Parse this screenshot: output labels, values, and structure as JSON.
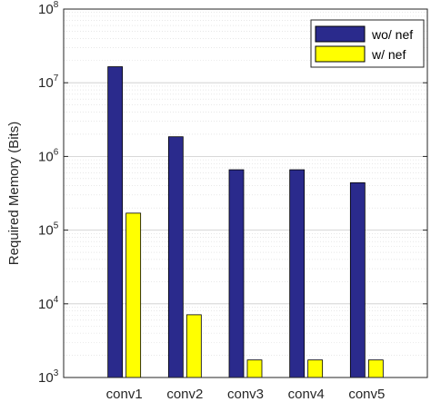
{
  "chart_data": {
    "type": "bar",
    "title": "",
    "xlabel": "",
    "ylabel": "Required Memory (Bits)",
    "yscale": "log",
    "ylim": [
      1000,
      100000000
    ],
    "y_tick_base": "10",
    "y_tick_exponents": [
      "3",
      "4",
      "5",
      "6",
      "7",
      "8"
    ],
    "grid": "on (major and minor, y only)",
    "legend_position": "top-right",
    "categories": [
      "conv1",
      "conv2",
      "conv3",
      "conv4",
      "conv5"
    ],
    "series": [
      {
        "name": "wo/ nef",
        "color": "#2a2a8c",
        "values": [
          16500000,
          1850000,
          660000,
          660000,
          440000
        ]
      },
      {
        "name": "w/ nef",
        "color": "#ffff00",
        "values": [
          170000,
          7100,
          1730,
          1730,
          1730
        ]
      }
    ]
  }
}
